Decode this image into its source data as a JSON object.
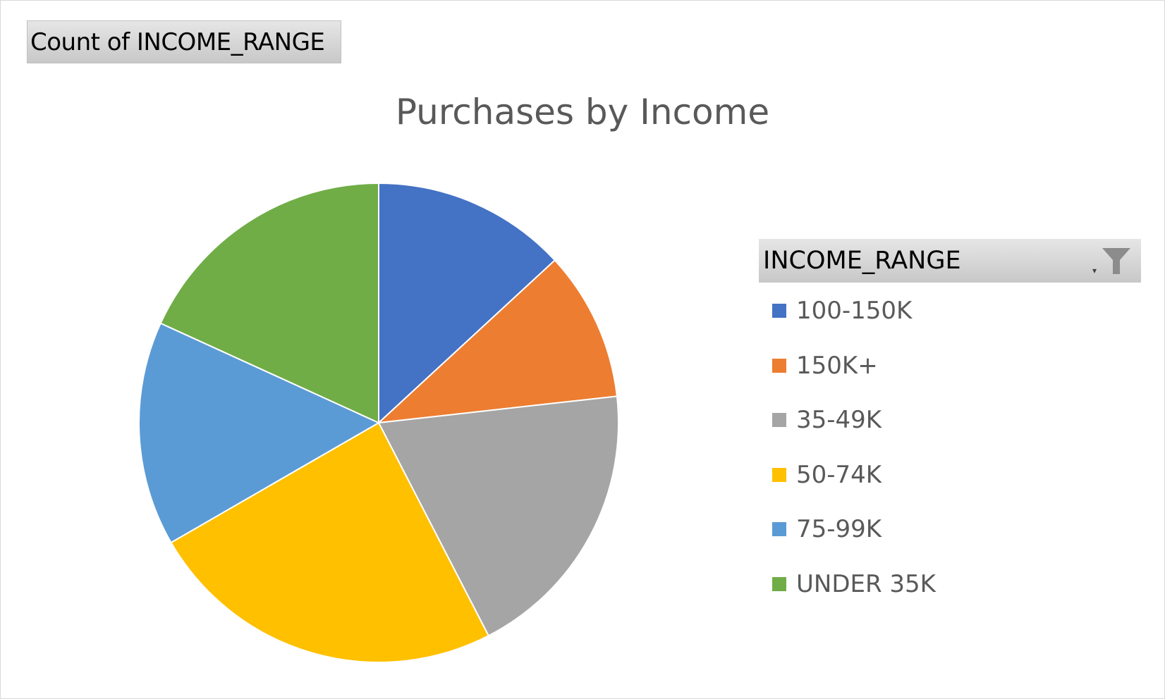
{
  "field_button": {
    "label": "Count of INCOME_RANGE"
  },
  "legend": {
    "header": "INCOME_RANGE",
    "filter_icon": "funnel-filter-icon",
    "dropdown_icon": "dropdown-arrow-icon"
  },
  "chart_data": {
    "type": "pie",
    "title": "Purchases by Income",
    "categories": [
      "100-150K",
      "150K+",
      "35-49K",
      "50-74K",
      "75-99K",
      "UNDER 35K"
    ],
    "values": [
      13,
      10,
      19,
      24,
      15,
      18
    ],
    "colors": [
      "#4472C4",
      "#ED7D31",
      "#A5A5A5",
      "#FFC000",
      "#5B9BD5",
      "#70AD47"
    ],
    "start_angle_deg": 0,
    "direction": "clockwise",
    "legend_position": "right"
  }
}
